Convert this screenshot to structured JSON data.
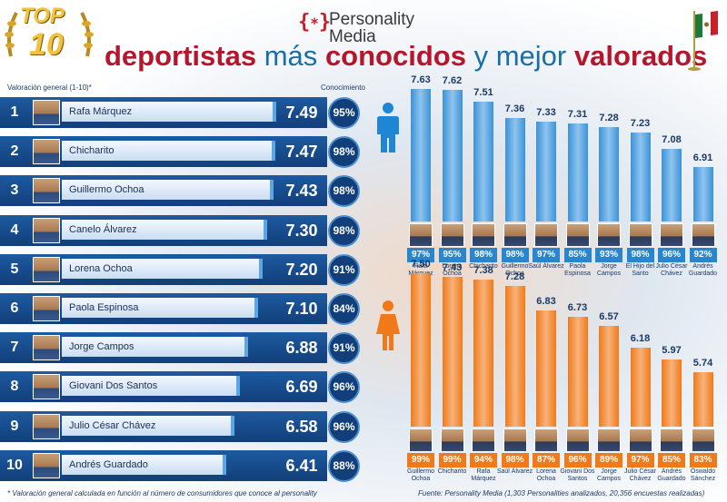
{
  "header": {
    "brand_line1": "Personality",
    "brand_line2": "Media",
    "badge_top": "TOP",
    "badge_num": "10",
    "title_words": [
      "deportistas",
      "más",
      "conocidos",
      "y",
      "mejor",
      "valorados"
    ]
  },
  "left_headers": {
    "rating": "Valoración general (1-10)*",
    "knowledge": "Conocimiento"
  },
  "chart_data": [
    {
      "type": "bar",
      "categories": [
        "Rafa Márquez",
        "Chicharito",
        "Guillermo Ochoa",
        "Canelo Álvarez",
        "Lorena Ochoa",
        "Paola Espinosa",
        "Jorge Campos",
        "Giovani Dos Santos",
        "Julio César Chávez",
        "Andrés Guardado"
      ],
      "ranks": [
        "1",
        "2",
        "3",
        "4",
        "5",
        "6",
        "7",
        "8",
        "9",
        "10"
      ],
      "series": [
        {
          "name": "Valoración general (1-10)*",
          "values": [
            7.49,
            7.47,
            7.43,
            7.3,
            7.2,
            7.1,
            6.88,
            6.69,
            6.58,
            6.41
          ]
        },
        {
          "name": "Conocimiento",
          "values": [
            "95%",
            "98%",
            "98%",
            "98%",
            "91%",
            "84%",
            "91%",
            "96%",
            "96%",
            "88%"
          ]
        }
      ],
      "bar_color": "#1d5aa0"
    },
    {
      "type": "bar",
      "group": "men",
      "categories": [
        "Rafa Márquez",
        "Lorena Ochoa",
        "Chicharito",
        "Guillermo Ochoa",
        "Saúl Álvarez",
        "Paola Espinosa",
        "Jorge Campos",
        "El Hijo del Santo",
        "Julio César Chávez",
        "Andrés Guardado"
      ],
      "values": [
        7.63,
        7.62,
        7.51,
        7.36,
        7.33,
        7.31,
        7.28,
        7.23,
        7.08,
        6.91
      ],
      "knowledge": [
        "97%",
        "95%",
        "98%",
        "98%",
        "97%",
        "85%",
        "93%",
        "98%",
        "96%",
        "92%"
      ],
      "color": "#2a85cf"
    },
    {
      "type": "bar",
      "group": "women",
      "categories": [
        "Guillermo Ochoa",
        "Chicharito",
        "Rafa Márquez",
        "Saúl Álvarez",
        "Lorena Ochoa",
        "Giovani Dos Santos",
        "Jorge Campos",
        "Julio César Chávez",
        "Andrés Guardado",
        "Oswaldo Sánchez"
      ],
      "values": [
        7.5,
        7.43,
        7.38,
        7.28,
        6.83,
        6.73,
        6.57,
        6.18,
        5.97,
        5.74
      ],
      "knowledge": [
        "99%",
        "99%",
        "94%",
        "98%",
        "87%",
        "96%",
        "89%",
        "97%",
        "85%",
        "83%"
      ],
      "color": "#f07a1a"
    }
  ],
  "footer": {
    "note": "* Valoración general calculada en función al número de consumidores que conoce al personality",
    "source": "Fuente: Personality Media (1,303 Personalities analizados, 20,356 encuestas realizadas)"
  },
  "colors": {
    "blue": "#1d5aa0",
    "orange": "#f07a1a",
    "red": "#b5162b"
  }
}
